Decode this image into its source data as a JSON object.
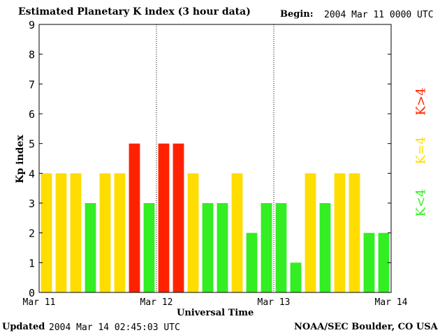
{
  "chart_data": {
    "type": "bar",
    "title": "Estimated Planetary K index (3 hour data)",
    "begin_label": "Begin:",
    "begin_value": "2004 Mar 11 0000 UTC",
    "ylabel": "Kp index",
    "xlabel": "Universal Time",
    "ylim": [
      0,
      9
    ],
    "yticks": [
      "0",
      "1",
      "2",
      "3",
      "4",
      "5",
      "6",
      "7",
      "8",
      "9"
    ],
    "xticks": [
      "Mar 11",
      "Mar 12",
      "Mar 13",
      "Mar 14"
    ],
    "values": [
      4,
      4,
      4,
      3,
      4,
      4,
      5,
      3,
      5,
      5,
      4,
      3,
      3,
      4,
      2,
      3,
      3,
      1,
      4,
      3,
      4,
      4,
      2,
      2
    ],
    "thresholds": {
      "green_below": 4,
      "yellow_equal": 4,
      "red_above": 4
    },
    "colors": {
      "green": "#33ee22",
      "yellow": "#ffdd00",
      "red": "#ff2200"
    },
    "legend": [
      {
        "label": "K>4",
        "color": "#ff2200"
      },
      {
        "label": "K=4",
        "color": "#ffdd00"
      },
      {
        "label": "K<4",
        "color": "#33ee22"
      }
    ],
    "grid": false
  },
  "footer": {
    "updated_label": "Updated",
    "updated_value": "2004 Mar 14 02:45:03 UTC",
    "source": "NOAA/SEC Boulder, CO USA"
  }
}
